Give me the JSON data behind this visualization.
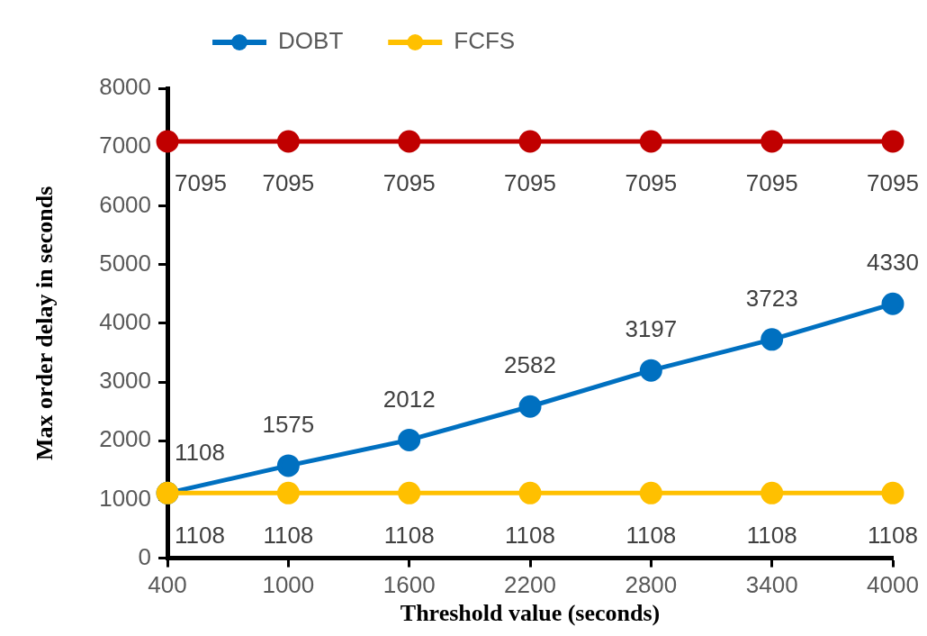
{
  "chart_data": {
    "type": "line",
    "xlabel": "Threshold value (seconds)",
    "ylabel": "Max order delay in seconds",
    "categories": [
      "400",
      "1000",
      "1600",
      "2200",
      "2800",
      "3400",
      "4000"
    ],
    "series": [
      {
        "name": "DOBT",
        "color": "#0070c0",
        "values": [
          1108,
          1575,
          2012,
          2582,
          3197,
          3723,
          4330
        ]
      },
      {
        "name": "FCFS",
        "color": "#ffc000",
        "values": [
          1108,
          1108,
          1108,
          1108,
          1108,
          1108,
          1108
        ]
      },
      {
        "color": "#c00000",
        "values": [
          7095,
          7095,
          7095,
          7095,
          7095,
          7095,
          7095
        ]
      }
    ],
    "ylim": [
      0,
      8000
    ],
    "yticks": [
      0,
      1000,
      2000,
      3000,
      4000,
      5000,
      6000,
      7000,
      8000
    ],
    "grid": false,
    "legend": "top left",
    "marker": "circle",
    "line_style": "solid",
    "data_labels": true
  }
}
